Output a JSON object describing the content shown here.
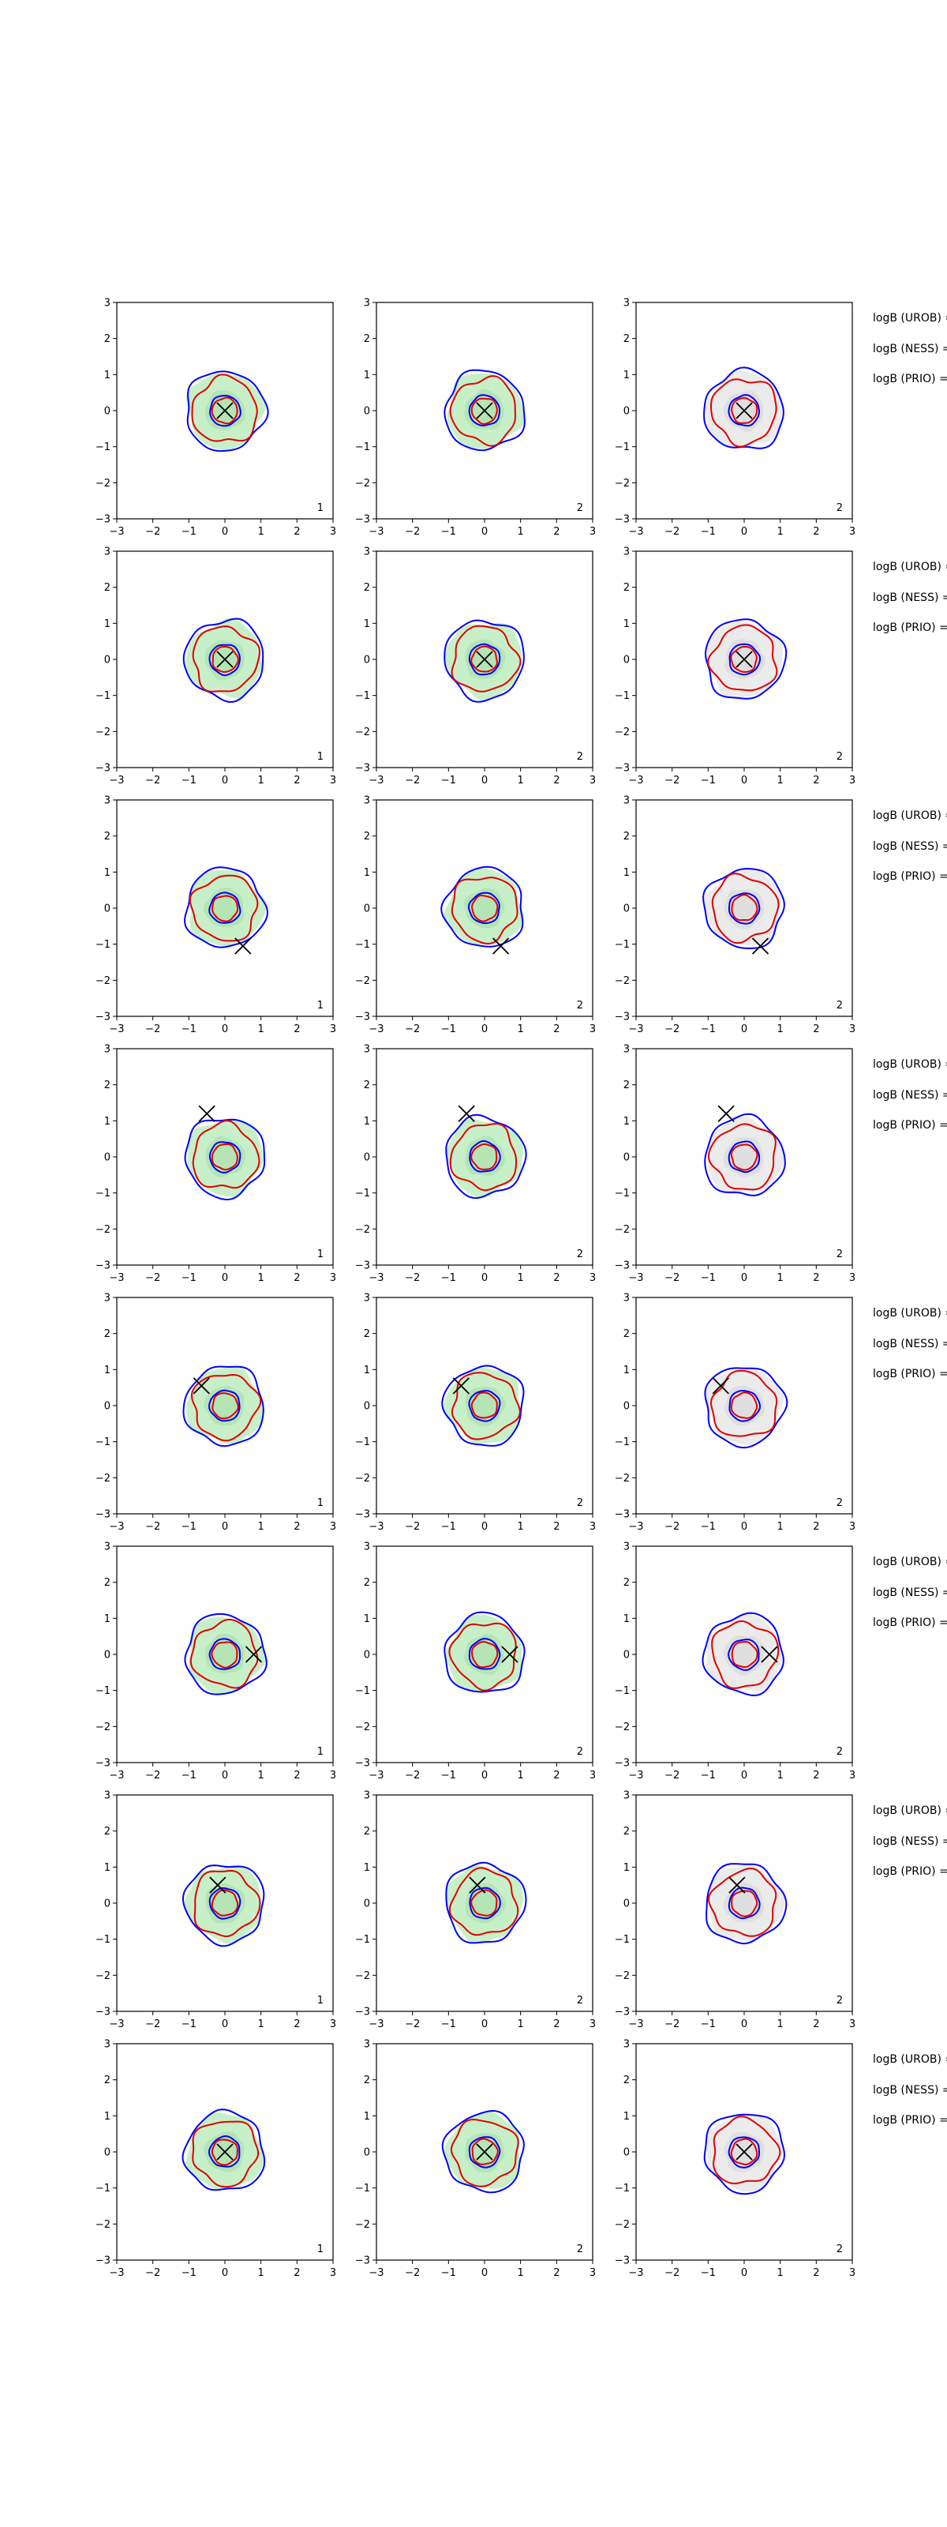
{
  "figure": {
    "rows": 8,
    "cols": 3,
    "note_labels": [
      "logB (UROB) =",
      "logB (NESS) =",
      "logB (PRIO) ="
    ],
    "colors": {
      "axis": "#000000",
      "green_fill": "#c8f0c8",
      "green_fill_dark": "#a9dca9",
      "grey_fill": "#ebebeb",
      "grey_fill_dark": "#d7d7d7",
      "blue_contour": "#0000ff",
      "red_contour": "#e00000",
      "marker": "#000000"
    }
  },
  "chart_data": [
    {
      "type": "contour",
      "row": 0,
      "col": 0,
      "tag": "1",
      "fill": "green",
      "marker": {
        "x": 0.0,
        "y": 0.0
      },
      "xlim": [
        -3,
        3
      ],
      "ylim": [
        -3,
        3
      ],
      "xticks": [
        -3,
        -2,
        -1,
        0,
        1,
        2,
        3
      ],
      "yticks": [
        -3,
        -2,
        -1,
        0,
        1,
        2,
        3
      ],
      "xtick_labels": [
        "−3",
        "−2",
        "−1",
        "0",
        "1",
        "2",
        "3"
      ],
      "ytick_labels": [
        "−3",
        "−2",
        "−1",
        "0",
        "1",
        "2",
        "3"
      ]
    },
    {
      "type": "contour",
      "row": 0,
      "col": 1,
      "tag": "2",
      "fill": "green",
      "marker": {
        "x": 0.0,
        "y": 0.0
      },
      "xlim": [
        -3,
        3
      ],
      "ylim": [
        -3,
        3
      ],
      "xticks": [
        -3,
        -2,
        -1,
        0,
        1,
        2,
        3
      ],
      "yticks": [
        -3,
        -2,
        -1,
        0,
        1,
        2,
        3
      ],
      "xtick_labels": [
        "−3",
        "−2",
        "−1",
        "0",
        "1",
        "2",
        "3"
      ],
      "ytick_labels": [
        "−3",
        "−2",
        "−1",
        "0",
        "1",
        "2",
        "3"
      ]
    },
    {
      "type": "contour",
      "row": 0,
      "col": 2,
      "tag": "2",
      "fill": "grey",
      "marker": {
        "x": 0.0,
        "y": 0.0
      },
      "xlim": [
        -3,
        3
      ],
      "ylim": [
        -3,
        3
      ],
      "xticks": [
        -3,
        -2,
        -1,
        0,
        1,
        2,
        3
      ],
      "yticks": [
        -3,
        -2,
        -1,
        0,
        1,
        2,
        3
      ],
      "xtick_labels": [
        "−3",
        "−2",
        "−1",
        "0",
        "1",
        "2",
        "3"
      ],
      "ytick_labels": [
        "−3",
        "−2",
        "−1",
        "0",
        "1",
        "2",
        "3"
      ]
    },
    {
      "type": "contour",
      "row": 1,
      "col": 0,
      "tag": "1",
      "fill": "green",
      "marker": {
        "x": 0.0,
        "y": 0.0
      },
      "xlim": [
        -3,
        3
      ],
      "ylim": [
        -3,
        3
      ],
      "xticks": [
        -3,
        -2,
        -1,
        0,
        1,
        2,
        3
      ],
      "yticks": [
        -3,
        -2,
        -1,
        0,
        1,
        2,
        3
      ],
      "xtick_labels": [
        "−3",
        "−2",
        "−1",
        "0",
        "1",
        "2",
        "3"
      ],
      "ytick_labels": [
        "−3",
        "−2",
        "−1",
        "0",
        "1",
        "2",
        "3"
      ]
    },
    {
      "type": "contour",
      "row": 1,
      "col": 1,
      "tag": "2",
      "fill": "green",
      "marker": {
        "x": 0.0,
        "y": 0.0
      },
      "xlim": [
        -3,
        3
      ],
      "ylim": [
        -3,
        3
      ],
      "xticks": [
        -3,
        -2,
        -1,
        0,
        1,
        2,
        3
      ],
      "yticks": [
        -3,
        -2,
        -1,
        0,
        1,
        2,
        3
      ],
      "xtick_labels": [
        "−3",
        "−2",
        "−1",
        "0",
        "1",
        "2",
        "3"
      ],
      "ytick_labels": [
        "−3",
        "−2",
        "−1",
        "0",
        "1",
        "2",
        "3"
      ]
    },
    {
      "type": "contour",
      "row": 1,
      "col": 2,
      "tag": "2",
      "fill": "grey",
      "marker": {
        "x": 0.0,
        "y": 0.0
      },
      "xlim": [
        -3,
        3
      ],
      "ylim": [
        -3,
        3
      ],
      "xticks": [
        -3,
        -2,
        -1,
        0,
        1,
        2,
        3
      ],
      "yticks": [
        -3,
        -2,
        -1,
        0,
        1,
        2,
        3
      ],
      "xtick_labels": [
        "−3",
        "−2",
        "−1",
        "0",
        "1",
        "2",
        "3"
      ],
      "ytick_labels": [
        "−3",
        "−2",
        "−1",
        "0",
        "1",
        "2",
        "3"
      ]
    },
    {
      "type": "contour",
      "row": 2,
      "col": 0,
      "tag": "1",
      "fill": "green",
      "marker": {
        "x": 0.5,
        "y": -1.05
      },
      "xlim": [
        -3,
        3
      ],
      "ylim": [
        -3,
        3
      ],
      "xticks": [
        -3,
        -2,
        -1,
        0,
        1,
        2,
        3
      ],
      "yticks": [
        -3,
        -2,
        -1,
        0,
        1,
        2,
        3
      ],
      "xtick_labels": [
        "−3",
        "−2",
        "−1",
        "0",
        "1",
        "2",
        "3"
      ],
      "ytick_labels": [
        "−3",
        "−2",
        "−1",
        "0",
        "1",
        "2",
        "3"
      ]
    },
    {
      "type": "contour",
      "row": 2,
      "col": 1,
      "tag": "2",
      "fill": "green",
      "marker": {
        "x": 0.45,
        "y": -1.05
      },
      "xlim": [
        -3,
        3
      ],
      "ylim": [
        -3,
        3
      ],
      "xticks": [
        -3,
        -2,
        -1,
        0,
        1,
        2,
        3
      ],
      "yticks": [
        -3,
        -2,
        -1,
        0,
        1,
        2,
        3
      ],
      "xtick_labels": [
        "−3",
        "−2",
        "−1",
        "0",
        "1",
        "2",
        "3"
      ],
      "ytick_labels": [
        "−3",
        "−2",
        "−1",
        "0",
        "1",
        "2",
        "3"
      ]
    },
    {
      "type": "contour",
      "row": 2,
      "col": 2,
      "tag": "2",
      "fill": "grey",
      "marker": {
        "x": 0.45,
        "y": -1.05
      },
      "xlim": [
        -3,
        3
      ],
      "ylim": [
        -3,
        3
      ],
      "xticks": [
        -3,
        -2,
        -1,
        0,
        1,
        2,
        3
      ],
      "yticks": [
        -3,
        -2,
        -1,
        0,
        1,
        2,
        3
      ],
      "xtick_labels": [
        "−3",
        "−2",
        "−1",
        "0",
        "1",
        "2",
        "3"
      ],
      "ytick_labels": [
        "−3",
        "−2",
        "−1",
        "0",
        "1",
        "2",
        "3"
      ]
    },
    {
      "type": "contour",
      "row": 3,
      "col": 0,
      "tag": "1",
      "fill": "green",
      "marker": {
        "x": -0.5,
        "y": 1.2
      },
      "xlim": [
        -3,
        3
      ],
      "ylim": [
        -3,
        3
      ],
      "xticks": [
        -3,
        -2,
        -1,
        0,
        1,
        2,
        3
      ],
      "yticks": [
        -3,
        -2,
        -1,
        0,
        1,
        2,
        3
      ],
      "xtick_labels": [
        "−3",
        "−2",
        "−1",
        "0",
        "1",
        "2",
        "3"
      ],
      "ytick_labels": [
        "−3",
        "−2",
        "−1",
        "0",
        "1",
        "2",
        "3"
      ]
    },
    {
      "type": "contour",
      "row": 3,
      "col": 1,
      "tag": "2",
      "fill": "green",
      "marker": {
        "x": -0.5,
        "y": 1.2
      },
      "xlim": [
        -3,
        3
      ],
      "ylim": [
        -3,
        3
      ],
      "xticks": [
        -3,
        -2,
        -1,
        0,
        1,
        2,
        3
      ],
      "yticks": [
        -3,
        -2,
        -1,
        0,
        1,
        2,
        3
      ],
      "xtick_labels": [
        "−3",
        "−2",
        "−1",
        "0",
        "1",
        "2",
        "3"
      ],
      "ytick_labels": [
        "−3",
        "−2",
        "−1",
        "0",
        "1",
        "2",
        "3"
      ]
    },
    {
      "type": "contour",
      "row": 3,
      "col": 2,
      "tag": "2",
      "fill": "grey",
      "marker": {
        "x": -0.5,
        "y": 1.2
      },
      "xlim": [
        -3,
        3
      ],
      "ylim": [
        -3,
        3
      ],
      "xticks": [
        -3,
        -2,
        -1,
        0,
        1,
        2,
        3
      ],
      "yticks": [
        -3,
        -2,
        -1,
        0,
        1,
        2,
        3
      ],
      "xtick_labels": [
        "−3",
        "−2",
        "−1",
        "0",
        "1",
        "2",
        "3"
      ],
      "ytick_labels": [
        "−3",
        "−2",
        "−1",
        "0",
        "1",
        "2",
        "3"
      ]
    },
    {
      "type": "contour",
      "row": 4,
      "col": 0,
      "tag": "1",
      "fill": "green",
      "marker": {
        "x": -0.65,
        "y": 0.55
      },
      "xlim": [
        -3,
        3
      ],
      "ylim": [
        -3,
        3
      ],
      "xticks": [
        -3,
        -2,
        -1,
        0,
        1,
        2,
        3
      ],
      "yticks": [
        -3,
        -2,
        -1,
        0,
        1,
        2,
        3
      ],
      "xtick_labels": [
        "−3",
        "−2",
        "−1",
        "0",
        "1",
        "2",
        "3"
      ],
      "ytick_labels": [
        "−3",
        "−2",
        "−1",
        "0",
        "1",
        "2",
        "3"
      ]
    },
    {
      "type": "contour",
      "row": 4,
      "col": 1,
      "tag": "2",
      "fill": "green",
      "marker": {
        "x": -0.65,
        "y": 0.55
      },
      "xlim": [
        -3,
        3
      ],
      "ylim": [
        -3,
        3
      ],
      "xticks": [
        -3,
        -2,
        -1,
        0,
        1,
        2,
        3
      ],
      "yticks": [
        -3,
        -2,
        -1,
        0,
        1,
        2,
        3
      ],
      "xtick_labels": [
        "−3",
        "−2",
        "−1",
        "0",
        "1",
        "2",
        "3"
      ],
      "ytick_labels": [
        "−3",
        "−2",
        "−1",
        "0",
        "1",
        "2",
        "3"
      ]
    },
    {
      "type": "contour",
      "row": 4,
      "col": 2,
      "tag": "2",
      "fill": "grey",
      "marker": {
        "x": -0.65,
        "y": 0.55
      },
      "xlim": [
        -3,
        3
      ],
      "ylim": [
        -3,
        3
      ],
      "xticks": [
        -3,
        -2,
        -1,
        0,
        1,
        2,
        3
      ],
      "yticks": [
        -3,
        -2,
        -1,
        0,
        1,
        2,
        3
      ],
      "xtick_labels": [
        "−3",
        "−2",
        "−1",
        "0",
        "1",
        "2",
        "3"
      ],
      "ytick_labels": [
        "−3",
        "−2",
        "−1",
        "0",
        "1",
        "2",
        "3"
      ]
    },
    {
      "type": "contour",
      "row": 5,
      "col": 0,
      "tag": "1",
      "fill": "green",
      "marker": {
        "x": 0.8,
        "y": 0.0
      },
      "xlim": [
        -3,
        3
      ],
      "ylim": [
        -3,
        3
      ],
      "xticks": [
        -3,
        -2,
        -1,
        0,
        1,
        2,
        3
      ],
      "yticks": [
        -3,
        -2,
        -1,
        0,
        1,
        2,
        3
      ],
      "xtick_labels": [
        "−3",
        "−2",
        "−1",
        "0",
        "1",
        "2",
        "3"
      ],
      "ytick_labels": [
        "−3",
        "−2",
        "−1",
        "0",
        "1",
        "2",
        "3"
      ]
    },
    {
      "type": "contour",
      "row": 5,
      "col": 1,
      "tag": "2",
      "fill": "green",
      "marker": {
        "x": 0.7,
        "y": 0.0
      },
      "xlim": [
        -3,
        3
      ],
      "ylim": [
        -3,
        3
      ],
      "xticks": [
        -3,
        -2,
        -1,
        0,
        1,
        2,
        3
      ],
      "yticks": [
        -3,
        -2,
        -1,
        0,
        1,
        2,
        3
      ],
      "xtick_labels": [
        "−3",
        "−2",
        "−1",
        "0",
        "1",
        "2",
        "3"
      ],
      "ytick_labels": [
        "−3",
        "−2",
        "−1",
        "0",
        "1",
        "2",
        "3"
      ]
    },
    {
      "type": "contour",
      "row": 5,
      "col": 2,
      "tag": "2",
      "fill": "grey",
      "marker": {
        "x": 0.7,
        "y": 0.0
      },
      "xlim": [
        -3,
        3
      ],
      "ylim": [
        -3,
        3
      ],
      "xticks": [
        -3,
        -2,
        -1,
        0,
        1,
        2,
        3
      ],
      "yticks": [
        -3,
        -2,
        -1,
        0,
        1,
        2,
        3
      ],
      "xtick_labels": [
        "−3",
        "−2",
        "−1",
        "0",
        "1",
        "2",
        "3"
      ],
      "ytick_labels": [
        "−3",
        "−2",
        "−1",
        "0",
        "1",
        "2",
        "3"
      ]
    },
    {
      "type": "contour",
      "row": 6,
      "col": 0,
      "tag": "1",
      "fill": "green",
      "marker": {
        "x": -0.2,
        "y": 0.5
      },
      "xlim": [
        -3,
        3
      ],
      "ylim": [
        -3,
        3
      ],
      "xticks": [
        -3,
        -2,
        -1,
        0,
        1,
        2,
        3
      ],
      "yticks": [
        -3,
        -2,
        -1,
        0,
        1,
        2,
        3
      ],
      "xtick_labels": [
        "−3",
        "−2",
        "−1",
        "0",
        "1",
        "2",
        "3"
      ],
      "ytick_labels": [
        "−3",
        "−2",
        "−1",
        "0",
        "1",
        "2",
        "3"
      ]
    },
    {
      "type": "contour",
      "row": 6,
      "col": 1,
      "tag": "2",
      "fill": "green",
      "marker": {
        "x": -0.2,
        "y": 0.5
      },
      "xlim": [
        -3,
        3
      ],
      "ylim": [
        -3,
        3
      ],
      "xticks": [
        -3,
        -2,
        -1,
        0,
        1,
        2,
        3
      ],
      "yticks": [
        -3,
        -2,
        -1,
        0,
        1,
        2,
        3
      ],
      "xtick_labels": [
        "−3",
        "−2",
        "−1",
        "0",
        "1",
        "2",
        "3"
      ],
      "ytick_labels": [
        "−3",
        "−2",
        "−1",
        "0",
        "1",
        "2",
        "3"
      ]
    },
    {
      "type": "contour",
      "row": 6,
      "col": 2,
      "tag": "2",
      "fill": "grey",
      "marker": {
        "x": -0.2,
        "y": 0.5
      },
      "xlim": [
        -3,
        3
      ],
      "ylim": [
        -3,
        3
      ],
      "xticks": [
        -3,
        -2,
        -1,
        0,
        1,
        2,
        3
      ],
      "yticks": [
        -3,
        -2,
        -1,
        0,
        1,
        2,
        3
      ],
      "xtick_labels": [
        "−3",
        "−2",
        "−1",
        "0",
        "1",
        "2",
        "3"
      ],
      "ytick_labels": [
        "−3",
        "−2",
        "−1",
        "0",
        "1",
        "2",
        "3"
      ]
    },
    {
      "type": "contour",
      "row": 7,
      "col": 0,
      "tag": "1",
      "fill": "green",
      "marker": {
        "x": 0.0,
        "y": 0.0
      },
      "xlim": [
        -3,
        3
      ],
      "ylim": [
        -3,
        3
      ],
      "xticks": [
        -3,
        -2,
        -1,
        0,
        1,
        2,
        3
      ],
      "yticks": [
        -3,
        -2,
        -1,
        0,
        1,
        2,
        3
      ],
      "xtick_labels": [
        "−3",
        "−2",
        "−1",
        "0",
        "1",
        "2",
        "3"
      ],
      "ytick_labels": [
        "−3",
        "−2",
        "−1",
        "0",
        "1",
        "2",
        "3"
      ]
    },
    {
      "type": "contour",
      "row": 7,
      "col": 1,
      "tag": "2",
      "fill": "green",
      "marker": {
        "x": 0.0,
        "y": 0.0
      },
      "xlim": [
        -3,
        3
      ],
      "ylim": [
        -3,
        3
      ],
      "xticks": [
        -3,
        -2,
        -1,
        0,
        1,
        2,
        3
      ],
      "yticks": [
        -3,
        -2,
        -1,
        0,
        1,
        2,
        3
      ],
      "xtick_labels": [
        "−3",
        "−2",
        "−1",
        "0",
        "1",
        "2",
        "3"
      ],
      "ytick_labels": [
        "−3",
        "−2",
        "−1",
        "0",
        "1",
        "2",
        "3"
      ]
    },
    {
      "type": "contour",
      "row": 7,
      "col": 2,
      "tag": "2",
      "fill": "grey",
      "marker": {
        "x": 0.0,
        "y": 0.0
      },
      "xlim": [
        -3,
        3
      ],
      "ylim": [
        -3,
        3
      ],
      "xticks": [
        -3,
        -2,
        -1,
        0,
        1,
        2,
        3
      ],
      "yticks": [
        -3,
        -2,
        -1,
        0,
        1,
        2,
        3
      ],
      "xtick_labels": [
        "−3",
        "−2",
        "−1",
        "0",
        "1",
        "2",
        "3"
      ],
      "ytick_labels": [
        "−3",
        "−2",
        "−1",
        "0",
        "1",
        "2",
        "3"
      ]
    }
  ]
}
